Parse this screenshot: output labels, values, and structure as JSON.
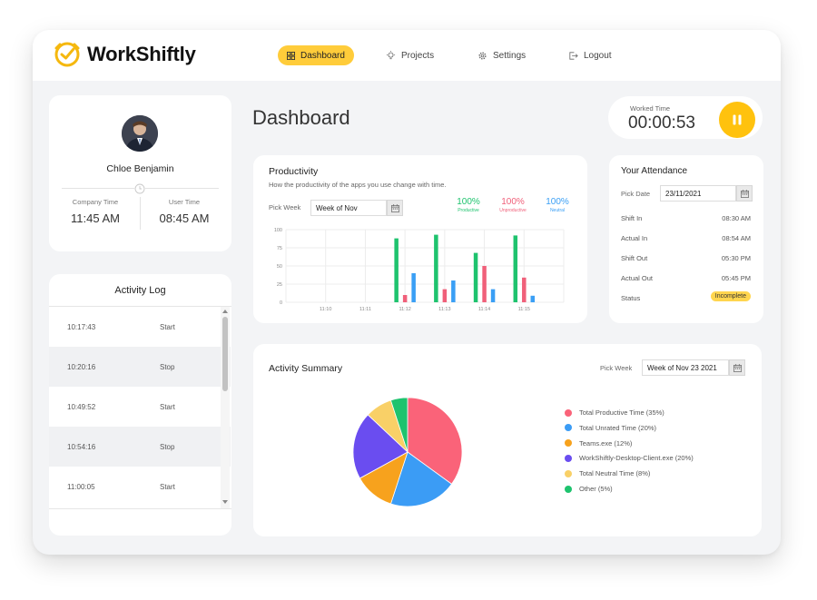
{
  "app": {
    "name": "WorkShiftly"
  },
  "nav": [
    {
      "label": "Dashboard",
      "active": true
    },
    {
      "label": "Projects"
    },
    {
      "label": "Settings"
    },
    {
      "label": "Logout"
    }
  ],
  "profile": {
    "name": "Chloe Benjamin",
    "company_time_label": "Company Time",
    "company_time": "11:45 AM",
    "user_time_label": "User Time",
    "user_time": "08:45 AM"
  },
  "activity_log": {
    "title": "Activity Log",
    "rows": [
      {
        "time": "10:17:43",
        "action": "Start"
      },
      {
        "time": "10:20:16",
        "action": "Stop"
      },
      {
        "time": "10:49:52",
        "action": "Start"
      },
      {
        "time": "10:54:16",
        "action": "Stop"
      },
      {
        "time": "11:00:05",
        "action": "Start"
      }
    ]
  },
  "page_title": "Dashboard",
  "worked_time": {
    "label": "Worked Time",
    "value": "00:00:53"
  },
  "productivity": {
    "title": "Productivity",
    "subtitle": "How the productivity of the apps you use change with time.",
    "pick_week_label": "Pick Week",
    "week_value": "Week of Nov",
    "stats": [
      {
        "value": "100%",
        "label": "Productive",
        "color": "#1ec36e"
      },
      {
        "value": "100%",
        "label": "Unproductive",
        "color": "#f0607a"
      },
      {
        "value": "100%",
        "label": "Neutral",
        "color": "#3a9ff5"
      }
    ]
  },
  "attendance": {
    "title": "Your Attendance",
    "pick_date_label": "Pick Date",
    "date_value": "23/11/2021",
    "rows": [
      {
        "label": "Shift In",
        "value": "08:30 AM"
      },
      {
        "label": "Actual In",
        "value": "08:54 AM"
      },
      {
        "label": "Shift Out",
        "value": "05:30 PM"
      },
      {
        "label": "Actual Out",
        "value": "05:45 PM"
      }
    ],
    "status_label": "Status",
    "status_value": "Incomplete"
  },
  "activity_summary": {
    "title": "Activity Summary",
    "pick_week_label": "Pick Week",
    "week_value": "Week of Nov 23 2021"
  },
  "chart_data": [
    {
      "type": "bar",
      "title": "Productivity",
      "categories": [
        "11:10",
        "11:11",
        "11:12",
        "11:13",
        "11:14",
        "11:15"
      ],
      "ylim": [
        0,
        100
      ],
      "yticks": [
        0,
        25,
        50,
        75,
        100
      ],
      "series": [
        {
          "name": "Productive",
          "color": "#1ec36e",
          "values": [
            0,
            0,
            88,
            93,
            68,
            92
          ]
        },
        {
          "name": "Unproductive",
          "color": "#f0607a",
          "values": [
            0,
            0,
            10,
            18,
            50,
            34
          ]
        },
        {
          "name": "Neutral",
          "color": "#3a9ff5",
          "values": [
            0,
            0,
            40,
            30,
            18,
            9
          ]
        }
      ],
      "grid": true
    },
    {
      "type": "pie",
      "title": "Activity Summary",
      "legend_position": "right",
      "slices": [
        {
          "label": "Total Productive Time (35%)",
          "value": 35,
          "color": "#fa6379"
        },
        {
          "label": "Total Unrated Time (20%)",
          "value": 20,
          "color": "#3b9cf5"
        },
        {
          "label": "Teams.exe (12%)",
          "value": 12,
          "color": "#f7a21d"
        },
        {
          "label": "WorkShiftly-Desktop-Client.exe (20%)",
          "value": 20,
          "color": "#6a4df0"
        },
        {
          "label": "Total Neutral Time (8%)",
          "value": 8,
          "color": "#f9d067"
        },
        {
          "label": "Other (5%)",
          "value": 5,
          "color": "#1ec36e"
        }
      ]
    }
  ]
}
